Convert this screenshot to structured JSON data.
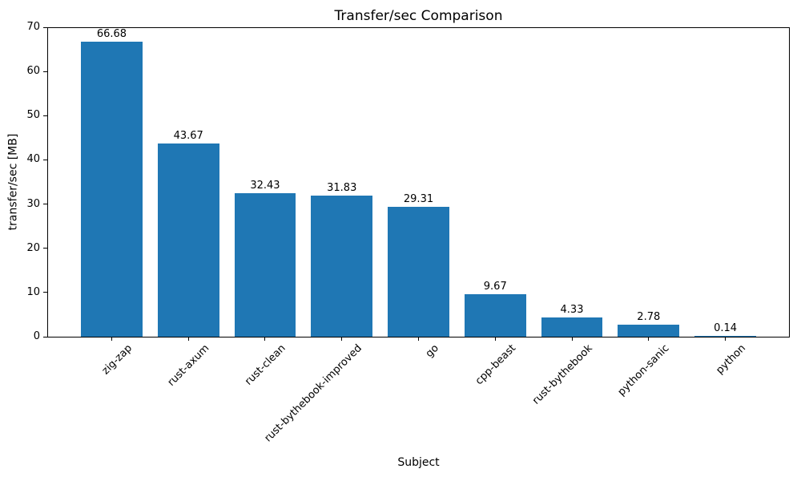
{
  "chart_data": {
    "type": "bar",
    "title": "Transfer/sec Comparison",
    "xlabel": "Subject",
    "ylabel": "transfer/sec [MB]",
    "categories": [
      "zig-zap",
      "rust-axum",
      "rust-clean",
      "rust-bythebook-improved",
      "go",
      "cpp-beast",
      "rust-bythebook",
      "python-sanic",
      "python"
    ],
    "values": [
      66.68,
      43.67,
      32.43,
      31.83,
      29.31,
      9.67,
      4.33,
      2.78,
      0.14
    ],
    "value_labels": [
      "66.68",
      "43.67",
      "32.43",
      "31.83",
      "29.31",
      "9.67",
      "4.33",
      "2.78",
      "0.14"
    ],
    "ylim": [
      0,
      70
    ],
    "yticks": [
      0,
      10,
      20,
      30,
      40,
      50,
      60,
      70
    ],
    "bar_color": "#1f77b4",
    "text_color": "#000000",
    "spine_color": "#000000",
    "grid": false,
    "legend": null
  }
}
